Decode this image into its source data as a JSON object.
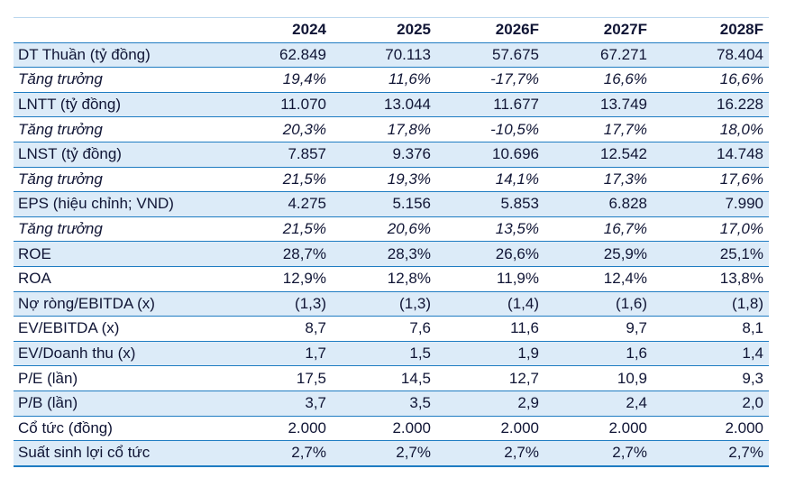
{
  "table": {
    "header": [
      "2024",
      "2025",
      "2026F",
      "2027F",
      "2028F"
    ],
    "rows": [
      [
        "DT Thuần (tỷ đồng)",
        "62.849",
        "70.113",
        "57.675",
        "67.271",
        "78.404"
      ],
      [
        "Tăng trưởng",
        "19,4%",
        "11,6%",
        "-17,7%",
        "16,6%",
        "16,6%"
      ],
      [
        "LNTT (tỷ đồng)",
        "11.070",
        "13.044",
        "11.677",
        "13.749",
        "16.228"
      ],
      [
        "Tăng trưởng",
        "20,3%",
        "17,8%",
        "-10,5%",
        "17,7%",
        "18,0%"
      ],
      [
        "LNST (tỷ đồng)",
        "7.857",
        "9.376",
        "10.696",
        "12.542",
        "14.748"
      ],
      [
        "Tăng trưởng",
        "21,5%",
        "19,3%",
        "14,1%",
        "17,3%",
        "17,6%"
      ],
      [
        "EPS (hiệu chỉnh; VND)",
        "4.275",
        "5.156",
        "5.853",
        "6.828",
        "7.990"
      ],
      [
        "Tăng trưởng",
        "21,5%",
        "20,6%",
        "13,5%",
        "16,7%",
        "17,0%"
      ],
      [
        "ROE",
        "28,7%",
        "28,3%",
        "26,6%",
        "25,9%",
        "25,1%"
      ],
      [
        "ROA",
        "12,9%",
        "12,8%",
        "11,9%",
        "12,4%",
        "13,8%"
      ],
      [
        "Nợ ròng/EBITDA (x)",
        "(1,3)",
        "(1,3)",
        "(1,4)",
        "(1,6)",
        "(1,8)"
      ],
      [
        "EV/EBITDA (x)",
        "8,7",
        "7,6",
        "11,6",
        "9,7",
        "8,1"
      ],
      [
        "EV/Doanh thu (x)",
        "1,7",
        "1,5",
        "1,9",
        "1,6",
        "1,4"
      ],
      [
        "P/E (lần)",
        "17,5",
        "14,5",
        "12,7",
        "10,9",
        "9,3"
      ],
      [
        "P/B (lần)",
        "3,7",
        "3,5",
        "2,9",
        "2,4",
        "2,0"
      ],
      [
        "Cổ tức (đồng)",
        "2.000",
        "2.000",
        "2.000",
        "2.000",
        "2.000"
      ],
      [
        "Suất sinh lợi cổ tức",
        "2,7%",
        "2,7%",
        "2,7%",
        "2,7%",
        "2,7%"
      ]
    ]
  }
}
